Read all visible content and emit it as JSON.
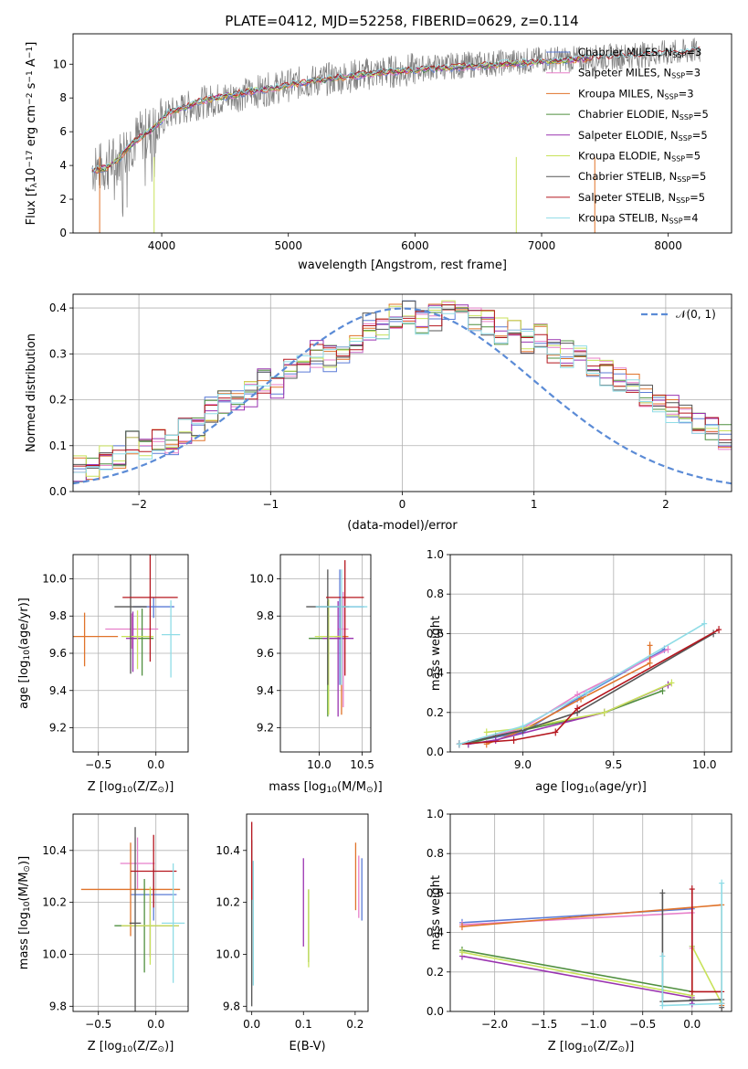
{
  "figure_title": "PLATE=0412, MJD=52258, FIBERID=0629, z=0.114",
  "colors": {
    "Chabrier MILES": "#5b7bd6",
    "Salpeter MILES": "#e77fca",
    "Kroupa MILES": "#e0732a",
    "Chabrier ELODIE": "#4f8f3f",
    "Salpeter ELODIE": "#9a33b0",
    "Kroupa ELODIE": "#c8e25a",
    "Chabrier STELIB": "#555555",
    "Salpeter STELIB": "#b5161e",
    "Kroupa STELIB": "#8fdce6",
    "normal": "#5b8bd6"
  },
  "chart_data": [
    {
      "id": "spectrum",
      "type": "line",
      "xlabel": "wavelength [Angstrom, rest frame]",
      "ylabel": "Flux [f",
      "ylabel_sub": "λ",
      "ylabel_mid": "10",
      "ylabel_sup": "−17",
      "ylabel_mid2": " erg cm",
      "ylabel_sup2": "−2",
      "ylabel_mid3": " s",
      "ylabel_sup3": "−1",
      "ylabel_mid4": " A",
      "ylabel_sup4": "−1",
      "ylabel_end": "]",
      "xlim": [
        3300,
        8500
      ],
      "ylim": [
        0,
        11.8
      ],
      "xticks": [
        4000,
        5000,
        6000,
        7000,
        8000
      ],
      "yticks": [
        0,
        2,
        4,
        6,
        8,
        10
      ],
      "grid": false,
      "legend_position": "right",
      "data_x": [
        3450,
        3550,
        3650,
        3750,
        3850,
        3950,
        4050,
        4150,
        4300,
        4500,
        4700,
        4900,
        5100,
        5300,
        5500,
        5700,
        5900,
        6100,
        6300,
        6500,
        6700,
        6900,
        7100,
        7300,
        7500,
        7700,
        7900,
        8100,
        8250
      ],
      "data_y": [
        3.8,
        3.9,
        4.4,
        5.3,
        5.8,
        6.2,
        7.0,
        7.3,
        7.7,
        8.0,
        8.3,
        8.6,
        8.9,
        9.1,
        9.3,
        9.5,
        9.6,
        9.8,
        9.9,
        10.0,
        10.1,
        10.2,
        10.3,
        10.3,
        10.4,
        10.5,
        10.6,
        10.7,
        10.8
      ],
      "model_y": [
        3.7,
        3.8,
        4.3,
        5.2,
        5.8,
        6.3,
        7.1,
        7.4,
        7.8,
        8.1,
        8.4,
        8.6,
        8.9,
        9.1,
        9.3,
        9.5,
        9.6,
        9.7,
        9.8,
        9.9,
        10.0,
        10.1,
        10.2,
        10.3,
        10.4,
        10.5,
        10.6,
        10.7,
        10.8
      ],
      "model_end": [
        7400,
        7400,
        7400,
        7400,
        7400,
        7400,
        8250,
        8250,
        8250
      ],
      "series": [
        {
          "name": "Chabrier MILES",
          "name_sub": "SSP",
          "name_end": "=3"
        },
        {
          "name": "Salpeter MILES",
          "name_sub": "SSP",
          "name_end": "=3"
        },
        {
          "name": "Kroupa MILES",
          "name_sub": "SSP",
          "name_end": "=3"
        },
        {
          "name": "Chabrier ELODIE",
          "name_sub": "SSP",
          "name_end": "=5"
        },
        {
          "name": "Salpeter ELODIE",
          "name_sub": "SSP",
          "name_end": "=5"
        },
        {
          "name": "Kroupa ELODIE",
          "name_sub": "SSP",
          "name_end": "=5"
        },
        {
          "name": "Chabrier STELIB",
          "name_sub": "SSP",
          "name_end": "=5"
        },
        {
          "name": "Salpeter STELIB",
          "name_sub": "SSP",
          "name_end": "=5"
        },
        {
          "name": "Kroupa STELIB",
          "name_sub": "SSP",
          "name_end": "=4"
        }
      ]
    },
    {
      "id": "residuals",
      "type": "histogram",
      "xlabel": "(data-model)/error",
      "ylabel": "Normed distribution",
      "xlim": [
        -2.5,
        2.5
      ],
      "ylim": [
        0,
        0.43
      ],
      "xticks": [
        -2,
        -1,
        0,
        1,
        2
      ],
      "yticks": [
        0.0,
        0.1,
        0.2,
        0.3,
        0.4
      ],
      "grid": true,
      "legend_position": "top-right",
      "normal_label": "𝒩(0, 1)",
      "bin_width": 0.1,
      "bin_start": -2.5,
      "values_chabrier_miles": [
        0.05,
        0.05,
        0.07,
        0.08,
        0.11,
        0.09,
        0.11,
        0.1,
        0.13,
        0.14,
        0.18,
        0.19,
        0.2,
        0.21,
        0.24,
        0.23,
        0.26,
        0.28,
        0.3,
        0.29,
        0.31,
        0.33,
        0.36,
        0.35,
        0.38,
        0.39,
        0.37,
        0.38,
        0.4,
        0.39,
        0.38,
        0.37,
        0.35,
        0.36,
        0.33,
        0.34,
        0.31,
        0.3,
        0.29,
        0.27,
        0.26,
        0.24,
        0.23,
        0.21,
        0.2,
        0.18,
        0.17,
        0.15,
        0.14,
        0.12
      ]
    },
    {
      "id": "z_age",
      "type": "errorbar",
      "xlabel": "Z [log",
      "xlabel_sub": "10",
      "xlabel_end": "(Z/Z",
      "xlabel_sub2": "⊙",
      "xlabel_end2": ")]",
      "ylabel": "age  [log",
      "ylabel_sub": "10",
      "ylabel_end": "(age/yr)]",
      "xlim": [
        -0.72,
        0.28
      ],
      "ylim": [
        9.07,
        10.13
      ],
      "xticks": [
        -0.5,
        0.0
      ],
      "xticklabels": [
        "−0.5",
        "0.0"
      ],
      "yticks": [
        9.2,
        9.4,
        9.6,
        9.8,
        10.0
      ],
      "grid": true
    },
    {
      "id": "mass_age",
      "type": "errorbar",
      "xlabel": "mass [log",
      "xlabel_sub": "10",
      "xlabel_end": "(M/M",
      "xlabel_sub2": "⊙",
      "xlabel_end2": ")]",
      "xlim": [
        9.55,
        10.6
      ],
      "ylim": [
        9.07,
        10.13
      ],
      "xticks": [
        10.0,
        10.5
      ],
      "xticklabels": [
        "10.0",
        "10.5"
      ],
      "yticks": [
        9.2,
        9.4,
        9.6,
        9.8,
        10.0
      ],
      "grid": true
    },
    {
      "id": "age_weight",
      "type": "line",
      "xlabel": "age  [log",
      "xlabel_sub": "10",
      "xlabel_end": "(age/yr)]",
      "ylabel": "mass weight",
      "xlim": [
        8.6,
        10.15
      ],
      "ylim": [
        0,
        1.0
      ],
      "xticks": [
        9.0,
        9.5,
        10.0
      ],
      "yticks": [
        0.0,
        0.2,
        0.4,
        0.6,
        0.8,
        1.0
      ],
      "grid": true
    },
    {
      "id": "z_mass",
      "type": "errorbar",
      "xlabel": "Z [log",
      "xlabel_sub": "10",
      "xlabel_end": "(Z/Z",
      "xlabel_sub2": "⊙",
      "xlabel_end2": ")]",
      "ylabel": "mass [log",
      "ylabel_sub": "10",
      "ylabel_end": "(M/M",
      "ylabel_sub2": "⊙",
      "ylabel_end2": ")]",
      "xlim": [
        -0.72,
        0.28
      ],
      "ylim": [
        9.78,
        10.54
      ],
      "xticks": [
        -0.5,
        0.0
      ],
      "xticklabels": [
        "−0.5",
        "0.0"
      ],
      "yticks": [
        9.8,
        10.0,
        10.2,
        10.4
      ],
      "grid": true
    },
    {
      "id": "ebv_mass",
      "type": "errorbar",
      "xlabel": "E(B-V)",
      "xlim": [
        -0.01,
        0.225
      ],
      "ylim": [
        9.78,
        10.54
      ],
      "xticks": [
        0.0,
        0.1,
        0.2
      ],
      "yticks": [
        9.8,
        10.0,
        10.2,
        10.4
      ],
      "grid": false
    },
    {
      "id": "z_weight",
      "type": "line",
      "xlabel": "Z [log",
      "xlabel_sub": "10",
      "xlabel_end": "(Z/Z",
      "xlabel_sub2": "⊙",
      "xlabel_end2": ")]",
      "ylabel": "mass weight",
      "xlim": [
        -2.45,
        0.4
      ],
      "ylim": [
        0,
        1.0
      ],
      "xticks": [
        -2.0,
        -1.5,
        -1.0,
        -0.5,
        0.0
      ],
      "xticklabels": [
        "−2.0",
        "−1.5",
        "−1.0",
        "−0.5",
        "0.0"
      ],
      "yticks": [
        0.0,
        0.2,
        0.4,
        0.6,
        0.8,
        1.0
      ],
      "grid": true
    }
  ]
}
